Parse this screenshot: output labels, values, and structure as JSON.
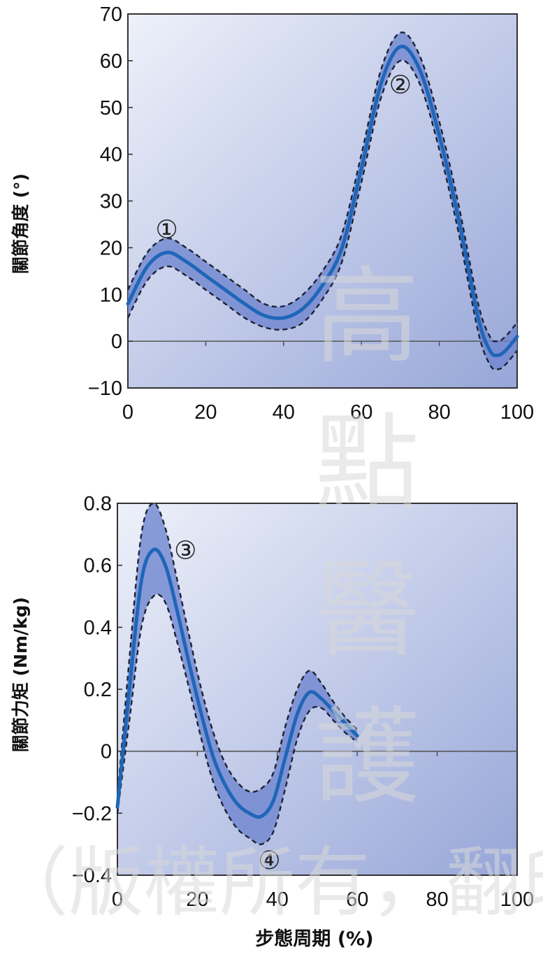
{
  "chart_data": [
    {
      "type": "line",
      "xlabel": "",
      "ylabel": "關節角度 (°)",
      "xlim": [
        0,
        100
      ],
      "ylim": [
        -10,
        70
      ],
      "x_ticks": [
        "0",
        "20",
        "40",
        "60",
        "80",
        "100"
      ],
      "y_ticks": [
        "70",
        "60",
        "50",
        "40",
        "30",
        "20",
        "10",
        "0",
        "−10"
      ],
      "x": [
        0,
        5,
        10,
        15,
        20,
        25,
        30,
        35,
        40,
        45,
        50,
        55,
        60,
        65,
        70,
        75,
        80,
        85,
        90,
        93,
        95,
        97,
        100
      ],
      "series": [
        {
          "role": "mean",
          "values": [
            8,
            16,
            19,
            17,
            14,
            11,
            8,
            5.5,
            5,
            7,
            12,
            20,
            37,
            55,
            63,
            58,
            44,
            26,
            5,
            -2,
            -3,
            -2,
            1
          ]
        },
        {
          "role": "upper",
          "values": [
            11,
            19,
            22,
            20,
            17,
            14,
            11,
            8,
            7.5,
            10,
            15,
            23,
            40,
            58,
            66,
            61,
            47,
            29,
            8,
            1,
            0,
            1,
            4
          ]
        },
        {
          "role": "lower",
          "values": [
            5,
            13,
            16,
            14,
            11,
            8,
            5,
            3,
            2.5,
            4,
            9,
            17,
            34,
            52,
            60,
            55,
            41,
            23,
            2,
            -5,
            -6,
            -5,
            -2
          ]
        }
      ],
      "annotations": [
        {
          "label": "①",
          "x": 10,
          "y": 24
        },
        {
          "label": "②",
          "x": 70,
          "y": 55
        }
      ]
    },
    {
      "type": "line",
      "xlabel": "步態周期 (%)",
      "ylabel": "關節力矩 (Nm/kg)",
      "xlim": [
        0,
        100
      ],
      "ylim": [
        -0.4,
        0.8
      ],
      "x_ticks": [
        "0",
        "20",
        "40",
        "60",
        "80",
        "100"
      ],
      "y_ticks": [
        "0.8",
        "0.6",
        "0.4",
        "0.2",
        "0",
        "−0.2",
        "−0.4"
      ],
      "x": [
        0,
        3,
        6,
        9,
        12,
        15,
        18,
        21,
        24,
        27,
        30,
        33,
        36,
        39,
        42,
        45,
        48,
        51,
        54,
        57,
        60
      ],
      "series": [
        {
          "role": "mean",
          "values": [
            -0.18,
            0.2,
            0.55,
            0.65,
            0.6,
            0.45,
            0.28,
            0.12,
            -0.02,
            -0.11,
            -0.17,
            -0.2,
            -0.21,
            -0.16,
            -0.02,
            0.12,
            0.19,
            0.17,
            0.13,
            0.09,
            0.05
          ]
        },
        {
          "role": "upper",
          "values": [
            -0.15,
            0.3,
            0.7,
            0.8,
            0.72,
            0.55,
            0.37,
            0.2,
            0.06,
            -0.04,
            -0.1,
            -0.13,
            -0.12,
            -0.07,
            0.08,
            0.2,
            0.26,
            0.22,
            0.16,
            0.11,
            0.07
          ]
        },
        {
          "role": "lower",
          "values": [
            -0.2,
            0.1,
            0.4,
            0.5,
            0.48,
            0.35,
            0.2,
            0.04,
            -0.1,
            -0.19,
            -0.25,
            -0.28,
            -0.3,
            -0.26,
            -0.12,
            0.04,
            0.13,
            0.14,
            0.1,
            0.06,
            0.03
          ]
        }
      ],
      "annotations": [
        {
          "label": "③",
          "x": 17,
          "y": 0.65
        },
        {
          "label": "④",
          "x": 38,
          "y": -0.35
        }
      ]
    }
  ],
  "watermark": {
    "vertical": [
      "高",
      "點",
      "醫",
      "護"
    ],
    "bottom": "（版權所有，翻印"
  },
  "colors": {
    "mean_line": "#1f66b8",
    "band_fill": "#6f86cf",
    "band_edge": "#1c2233",
    "plot_bg_start": "#eef1fa",
    "plot_bg_end": "#97a6d8"
  }
}
